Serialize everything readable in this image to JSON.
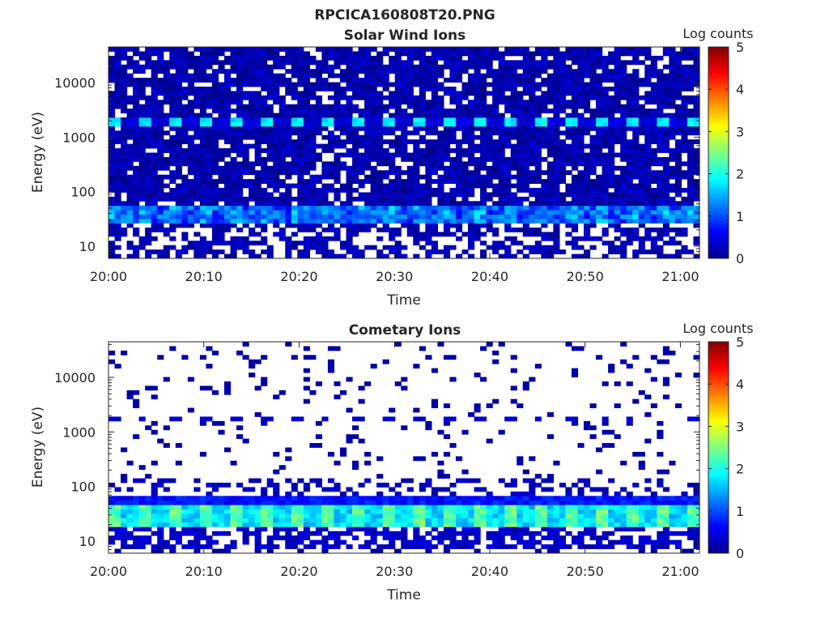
{
  "figure": {
    "title": "RPCICA160808T20.PNG"
  },
  "chart_data": [
    {
      "type": "heatmap",
      "title": "Solar Wind Ions",
      "xlabel": "Time",
      "ylabel": "Energy (eV)",
      "x_range": [
        "20:00",
        "21:02"
      ],
      "x_ticks": [
        "20:00",
        "20:10",
        "20:20",
        "20:30",
        "20:40",
        "20:50",
        "21:00"
      ],
      "y_scale": "log",
      "y_range": [
        6,
        45000
      ],
      "y_ticks": [
        10,
        100,
        1000,
        10000
      ],
      "y_tick_labels": [
        "10",
        "100",
        "1000",
        "10000"
      ],
      "colorbar": {
        "label": "Log counts",
        "range": [
          0,
          5
        ],
        "ticks": [
          "0",
          "1",
          "2",
          "3",
          "4",
          "5"
        ],
        "colormap": "jet"
      },
      "background": "#ffffff",
      "features": [
        {
          "name": "dense background",
          "energy_eV": [
            6,
            45000
          ],
          "log_counts": 0.25
        },
        {
          "name": "peak band",
          "energy_eV": [
            1500,
            2100
          ],
          "log_counts": 1.8,
          "period_min": 3.2
        },
        {
          "name": "low-energy band",
          "energy_eV": [
            25,
            60
          ],
          "log_counts": [
            0.6,
            1.5
          ]
        },
        {
          "name": "gaps",
          "energy_eV": [
            6,
            25
          ],
          "log_counts": null
        }
      ]
    },
    {
      "type": "heatmap",
      "title": "Cometary Ions",
      "xlabel": "Time",
      "ylabel": "Energy (eV)",
      "x_range": [
        "20:00",
        "21:02"
      ],
      "x_ticks": [
        "20:00",
        "20:10",
        "20:20",
        "20:30",
        "20:40",
        "20:50",
        "21:00"
      ],
      "y_scale": "log",
      "y_range": [
        6,
        45000
      ],
      "y_ticks": [
        10,
        100,
        1000,
        10000
      ],
      "y_tick_labels": [
        "10",
        "100",
        "1000",
        "10000"
      ],
      "colorbar": {
        "label": "Log counts",
        "range": [
          0,
          5
        ],
        "ticks": [
          "0",
          "1",
          "2",
          "3",
          "4",
          "5"
        ],
        "colormap": "jet"
      },
      "background": "#ffffff",
      "features": [
        {
          "name": "sparse high-energy",
          "energy_eV": [
            150,
            45000
          ],
          "log_counts": 0.2
        },
        {
          "name": "line near 1.7 keV",
          "energy_eV": [
            1500,
            2000
          ],
          "log_counts": 0.4
        },
        {
          "name": "main band",
          "energy_eV": [
            18,
            45
          ],
          "log_counts": [
            1.5,
            2.6
          ]
        },
        {
          "name": "lower band",
          "energy_eV": [
            7,
            18
          ],
          "log_counts": 0.3
        }
      ]
    }
  ]
}
